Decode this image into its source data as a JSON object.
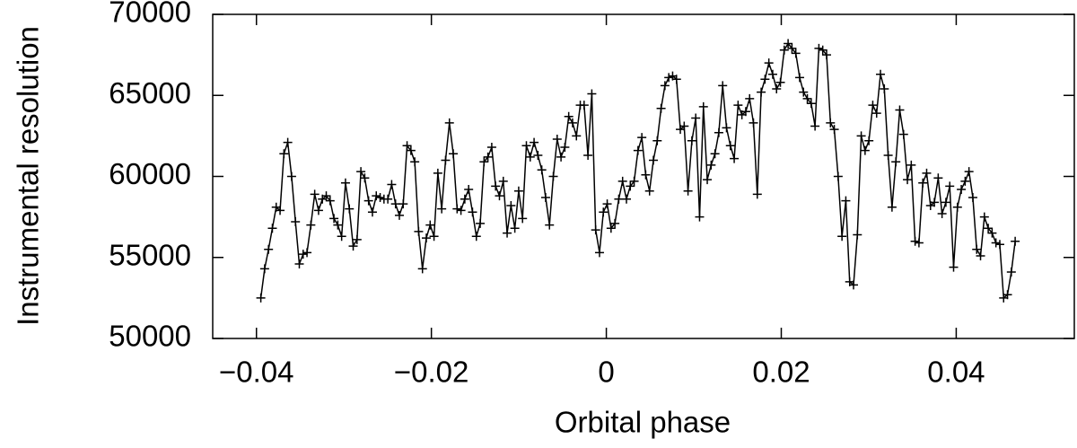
{
  "chart_data": {
    "type": "line",
    "x_label": "Orbital phase",
    "y_label": "Instrumental resolution",
    "color": "#000000",
    "marker": "+",
    "xlim": [
      -0.045,
      0.0535
    ],
    "ylim": [
      50000,
      70000
    ],
    "xticks": [
      {
        "value": -0.04,
        "label": "−0.04"
      },
      {
        "value": -0.02,
        "label": "−0.02"
      },
      0,
      0.02,
      0.04
    ],
    "yticks": [
      50000,
      55000,
      60000,
      65000,
      70000
    ],
    "x": [
      -0.0395,
      -0.03906,
      -0.03862,
      -0.03818,
      -0.03774,
      -0.0373,
      -0.03686,
      -0.03642,
      -0.03598,
      -0.03554,
      -0.0351,
      -0.03466,
      -0.03422,
      -0.03378,
      -0.03334,
      -0.0329,
      -0.03246,
      -0.03202,
      -0.03158,
      -0.03114,
      -0.0307,
      -0.03026,
      -0.02982,
      -0.02938,
      -0.02894,
      -0.0285,
      -0.02806,
      -0.02762,
      -0.02718,
      -0.02674,
      -0.0263,
      -0.02586,
      -0.02542,
      -0.02498,
      -0.02454,
      -0.0241,
      -0.02366,
      -0.02322,
      -0.02278,
      -0.02234,
      -0.0219,
      -0.02146,
      -0.02102,
      -0.02058,
      -0.02014,
      -0.0197,
      -0.01926,
      -0.01882,
      -0.01838,
      -0.01794,
      -0.0175,
      -0.01706,
      -0.01662,
      -0.01618,
      -0.01574,
      -0.0153,
      -0.01486,
      -0.01442,
      -0.01398,
      -0.01354,
      -0.0131,
      -0.01266,
      -0.01222,
      -0.01178,
      -0.01134,
      -0.0109,
      -0.01046,
      -0.01002,
      -0.00958,
      -0.00914,
      -0.0087,
      -0.00826,
      -0.00782,
      -0.00738,
      -0.00694,
      -0.0065,
      -0.00606,
      -0.00562,
      -0.00518,
      -0.00474,
      -0.0043,
      -0.00386,
      -0.00342,
      -0.00298,
      -0.00254,
      -0.0021,
      -0.00166,
      -0.00122,
      -0.00078,
      -0.00034,
      0.0001,
      0.00054,
      0.00098,
      0.00142,
      0.00186,
      0.0023,
      0.00274,
      0.00318,
      0.00362,
      0.00406,
      0.0045,
      0.00494,
      0.00538,
      0.00582,
      0.00626,
      0.0067,
      0.00714,
      0.00758,
      0.00802,
      0.00846,
      0.0089,
      0.00934,
      0.00978,
      0.01022,
      0.01066,
      0.0111,
      0.01154,
      0.01198,
      0.01242,
      0.01286,
      0.0133,
      0.01374,
      0.01418,
      0.01462,
      0.01506,
      0.0155,
      0.01594,
      0.01638,
      0.01682,
      0.01726,
      0.0177,
      0.01814,
      0.01858,
      0.01902,
      0.01946,
      0.0199,
      0.02034,
      0.02078,
      0.02122,
      0.02166,
      0.0221,
      0.02254,
      0.02298,
      0.02342,
      0.02386,
      0.0243,
      0.02474,
      0.02518,
      0.02562,
      0.02606,
      0.0265,
      0.02694,
      0.02738,
      0.02782,
      0.02826,
      0.0287,
      0.02914,
      0.02958,
      0.03002,
      0.03046,
      0.0309,
      0.03134,
      0.03178,
      0.03222,
      0.03266,
      0.0331,
      0.03354,
      0.03398,
      0.03442,
      0.03486,
      0.0353,
      0.03574,
      0.03618,
      0.03662,
      0.03706,
      0.0375,
      0.03794,
      0.03838,
      0.03882,
      0.03926,
      0.0397,
      0.04014,
      0.04058,
      0.04102,
      0.04146,
      0.0419,
      0.04234,
      0.04278,
      0.04322,
      0.04366,
      0.0441,
      0.04454,
      0.04498,
      0.04542,
      0.04586,
      0.0463,
      0.04674
    ],
    "values": [
      52500,
      54300,
      55500,
      56800,
      58100,
      57900,
      61400,
      62100,
      60000,
      57200,
      54600,
      55200,
      55300,
      57000,
      58900,
      57900,
      58600,
      58800,
      58500,
      57400,
      57000,
      56300,
      59600,
      58000,
      55700,
      56100,
      60300,
      59900,
      58500,
      57800,
      58800,
      58700,
      58600,
      58600,
      59500,
      58300,
      57600,
      58300,
      61900,
      61600,
      60900,
      56600,
      54300,
      56200,
      57000,
      56300,
      60200,
      58000,
      61000,
      63300,
      61400,
      58000,
      57900,
      58600,
      59200,
      57800,
      56300,
      57100,
      60900,
      61200,
      61800,
      59400,
      58800,
      59700,
      56500,
      58200,
      56800,
      59100,
      57400,
      61900,
      61200,
      62100,
      61300,
      60400,
      58700,
      57000,
      60000,
      62300,
      61200,
      61800,
      63700,
      63300,
      62500,
      64400,
      64400,
      61300,
      65100,
      56700,
      55300,
      57800,
      58300,
      56800,
      57100,
      58600,
      59700,
      58600,
      59400,
      59700,
      61600,
      62400,
      60100,
      59100,
      61000,
      62200,
      64200,
      65600,
      66100,
      66200,
      66000,
      62900,
      63100,
      59100,
      62200,
      63600,
      57500,
      64300,
      59800,
      60700,
      61400,
      62700,
      65600,
      63000,
      61900,
      61100,
      64400,
      63800,
      64000,
      64800,
      63300,
      58900,
      65200,
      66000,
      67000,
      66300,
      65400,
      65800,
      67800,
      68200,
      67900,
      67600,
      66100,
      65200,
      64800,
      64500,
      63100,
      67900,
      67800,
      67500,
      63300,
      62900,
      60000,
      56300,
      58500,
      53500,
      53300,
      56400,
      62500,
      61600,
      62200,
      64400,
      63900,
      66300,
      65400,
      61300,
      58100,
      60900,
      64100,
      62600,
      59800,
      60700,
      56000,
      55900,
      59600,
      60200,
      58200,
      58400,
      59900,
      57700,
      58400,
      59400,
      54400,
      58100,
      59200,
      59700,
      60300,
      58700,
      55500,
      55100,
      57500,
      56800,
      56500,
      55900,
      55800,
      52500,
      52700,
      54100,
      56000
    ]
  }
}
